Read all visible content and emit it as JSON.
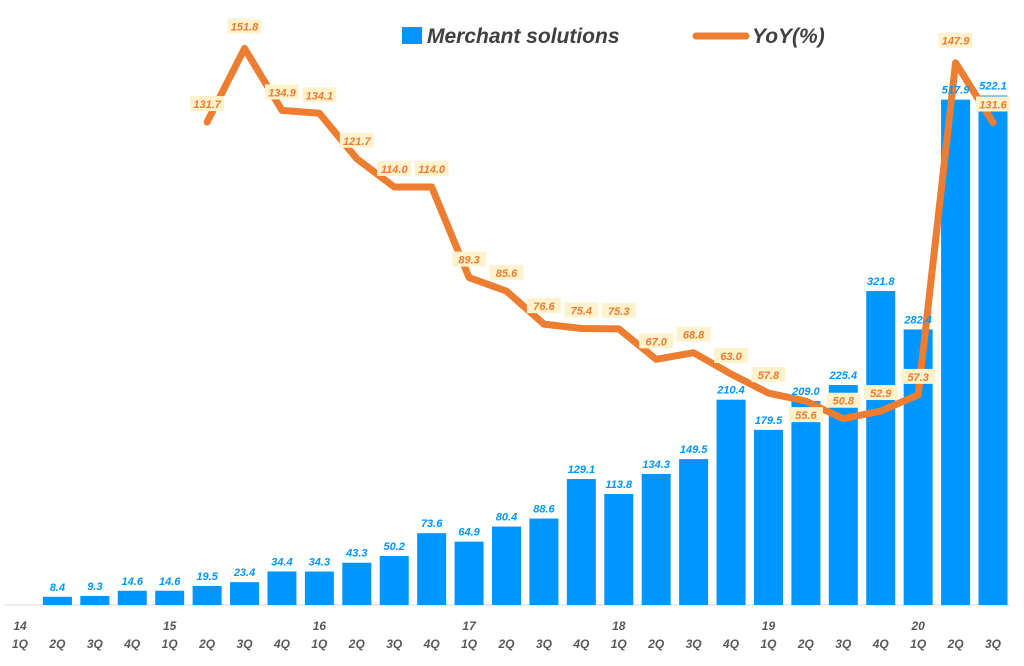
{
  "chart_data": {
    "type": "bar+line",
    "categories": [
      "1Q",
      "2Q",
      "3Q",
      "4Q",
      "1Q",
      "2Q",
      "3Q",
      "4Q",
      "1Q",
      "2Q",
      "3Q",
      "4Q",
      "1Q",
      "2Q",
      "3Q",
      "4Q",
      "1Q",
      "2Q",
      "3Q",
      "4Q",
      "1Q",
      "2Q",
      "3Q",
      "4Q",
      "1Q",
      "2Q",
      "3Q"
    ],
    "year_labels": [
      "14",
      "",
      "",
      "",
      "15",
      "",
      "",
      "",
      "16",
      "",
      "",
      "",
      "17",
      "",
      "",
      "",
      "18",
      "",
      "",
      "",
      "19",
      "",
      "",
      "",
      "20",
      "",
      ""
    ],
    "series": [
      {
        "name": "Merchant solutions",
        "type": "bar",
        "axis": "left",
        "values": [
          null,
          8.4,
          9.3,
          14.6,
          14.6,
          19.5,
          23.4,
          34.4,
          34.3,
          43.3,
          50.2,
          73.6,
          64.9,
          80.4,
          88.6,
          129.1,
          113.8,
          134.3,
          149.5,
          210.4,
          179.5,
          209.0,
          225.4,
          321.8,
          282.4,
          517.9,
          522.1
        ]
      },
      {
        "name": "YoY(%)",
        "type": "line",
        "axis": "right",
        "values": [
          null,
          null,
          null,
          null,
          null,
          131.7,
          151.8,
          134.9,
          134.1,
          121.7,
          114.0,
          114.0,
          89.3,
          85.6,
          76.6,
          75.4,
          75.3,
          67.0,
          68.8,
          63.0,
          57.8,
          55.6,
          50.8,
          52.9,
          57.3,
          147.9,
          131.6
        ]
      }
    ],
    "ylim_left": [
      0,
      620
    ],
    "ylim_right": [
      0,
      165
    ],
    "legend": "top-center",
    "grid": false,
    "colors": {
      "bar": "#0096FF",
      "line": "#ED7D31",
      "line_label_bg": "#FFF2CC",
      "bar_label": "#0096FF",
      "line_label": "#ED7D31"
    }
  }
}
